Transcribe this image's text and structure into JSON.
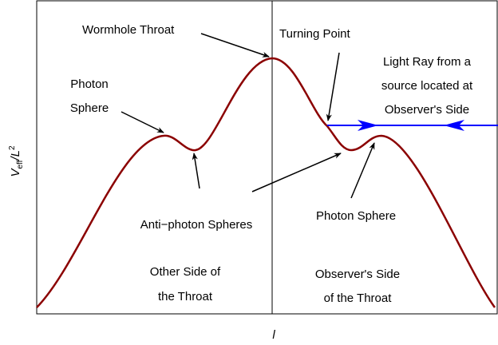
{
  "labels": {
    "wormhole_throat": "Wormhole Throat",
    "turning_point": "Turning Point",
    "light_ray": [
      "Light Ray from a",
      "source located at",
      "Observer's Side"
    ],
    "photon_sphere_left": [
      "Photon",
      "Sphere"
    ],
    "anti_photon_spheres": "Anti−photon Spheres",
    "photon_sphere_right": "Photon Sphere",
    "other_side": [
      "Other Side of",
      "the Throat"
    ],
    "observer_side": [
      "Observer's Side",
      "of the Throat"
    ]
  },
  "x_axis_label": "l",
  "y_axis_label": {
    "base": "V",
    "sub": "eff",
    "rest": "/L",
    "sup": "2"
  }
}
